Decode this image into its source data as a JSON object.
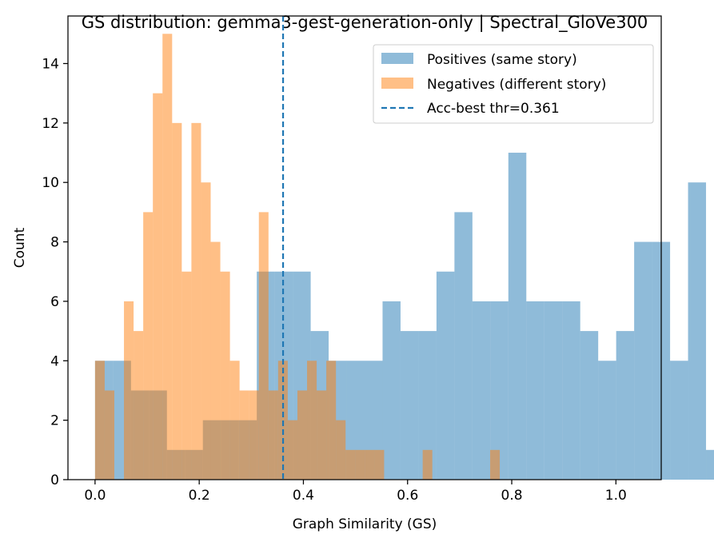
{
  "chart_data": {
    "type": "bar",
    "title": "GS distribution: gemma3-gest-generation-only | Spectral_GloVe300",
    "xlabel": "Graph Similarity (GS)",
    "ylabel": "Count",
    "xlim": [
      -0.052,
      1.087
    ],
    "ylim": [
      0,
      15.6
    ],
    "xticks": [
      0.0,
      0.2,
      0.4,
      0.6,
      0.8,
      1.0
    ],
    "xtick_labels": [
      "0.0",
      "0.2",
      "0.4",
      "0.6",
      "0.8",
      "1.0"
    ],
    "yticks": [
      0,
      2,
      4,
      6,
      8,
      10,
      12,
      14
    ],
    "ytick_labels": [
      "0",
      "2",
      "4",
      "6",
      "8",
      "10",
      "12",
      "14"
    ],
    "legend_position": "top-right",
    "series": [
      {
        "name": "Positives (same story)",
        "color": "#1f77b4",
        "opacity": 0.5,
        "bin_start": 0.0,
        "bin_width": 0.0345,
        "values": [
          4,
          4,
          3,
          3,
          1,
          1,
          2,
          2,
          2,
          7,
          7,
          7,
          5,
          4,
          4,
          4,
          6,
          5,
          5,
          7,
          9,
          6,
          6,
          11,
          6,
          6,
          6,
          5,
          4,
          5,
          8,
          8,
          4,
          10,
          1
        ]
      },
      {
        "name": "Negatives (different story)",
        "color": "#ff7f0e",
        "opacity": 0.5,
        "bin_start": 0.0,
        "bin_width": 0.0185,
        "values": [
          4,
          3,
          0,
          6,
          5,
          9,
          13,
          15,
          12,
          7,
          12,
          10,
          8,
          7,
          4,
          3,
          3,
          9,
          3,
          4,
          2,
          3,
          4,
          3,
          4,
          2,
          1,
          1,
          1,
          1,
          0,
          0,
          0,
          0,
          1,
          0,
          0,
          0,
          0,
          0,
          0,
          1
        ]
      }
    ],
    "reference_lines": [
      {
        "name": "Acc-best thr=0.361",
        "x": 0.361,
        "style": "dashed",
        "color": "#1f77b4"
      }
    ]
  }
}
